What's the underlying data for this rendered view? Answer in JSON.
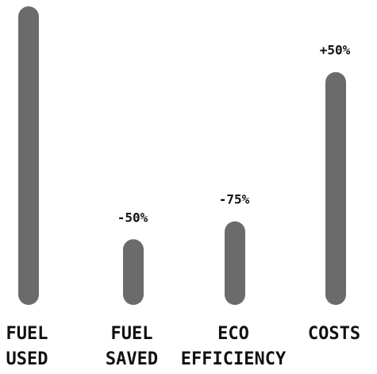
{
  "chart_data": {
    "type": "bar",
    "categories": [
      [
        "FUEL",
        "USED"
      ],
      [
        "FUEL",
        "SAVED"
      ],
      [
        "ECO",
        "EFFICIENCY"
      ],
      [
        "COSTS"
      ]
    ],
    "values": [
      100,
      22,
      28,
      78
    ],
    "data_labels": [
      "",
      "-50%",
      "-75%",
      "+50%"
    ],
    "title": "",
    "xlabel": "",
    "ylabel": "",
    "ylim": [
      0,
      100
    ],
    "grid": false,
    "colors": {
      "bar": "#6b6b6b",
      "text": "#111111"
    }
  }
}
